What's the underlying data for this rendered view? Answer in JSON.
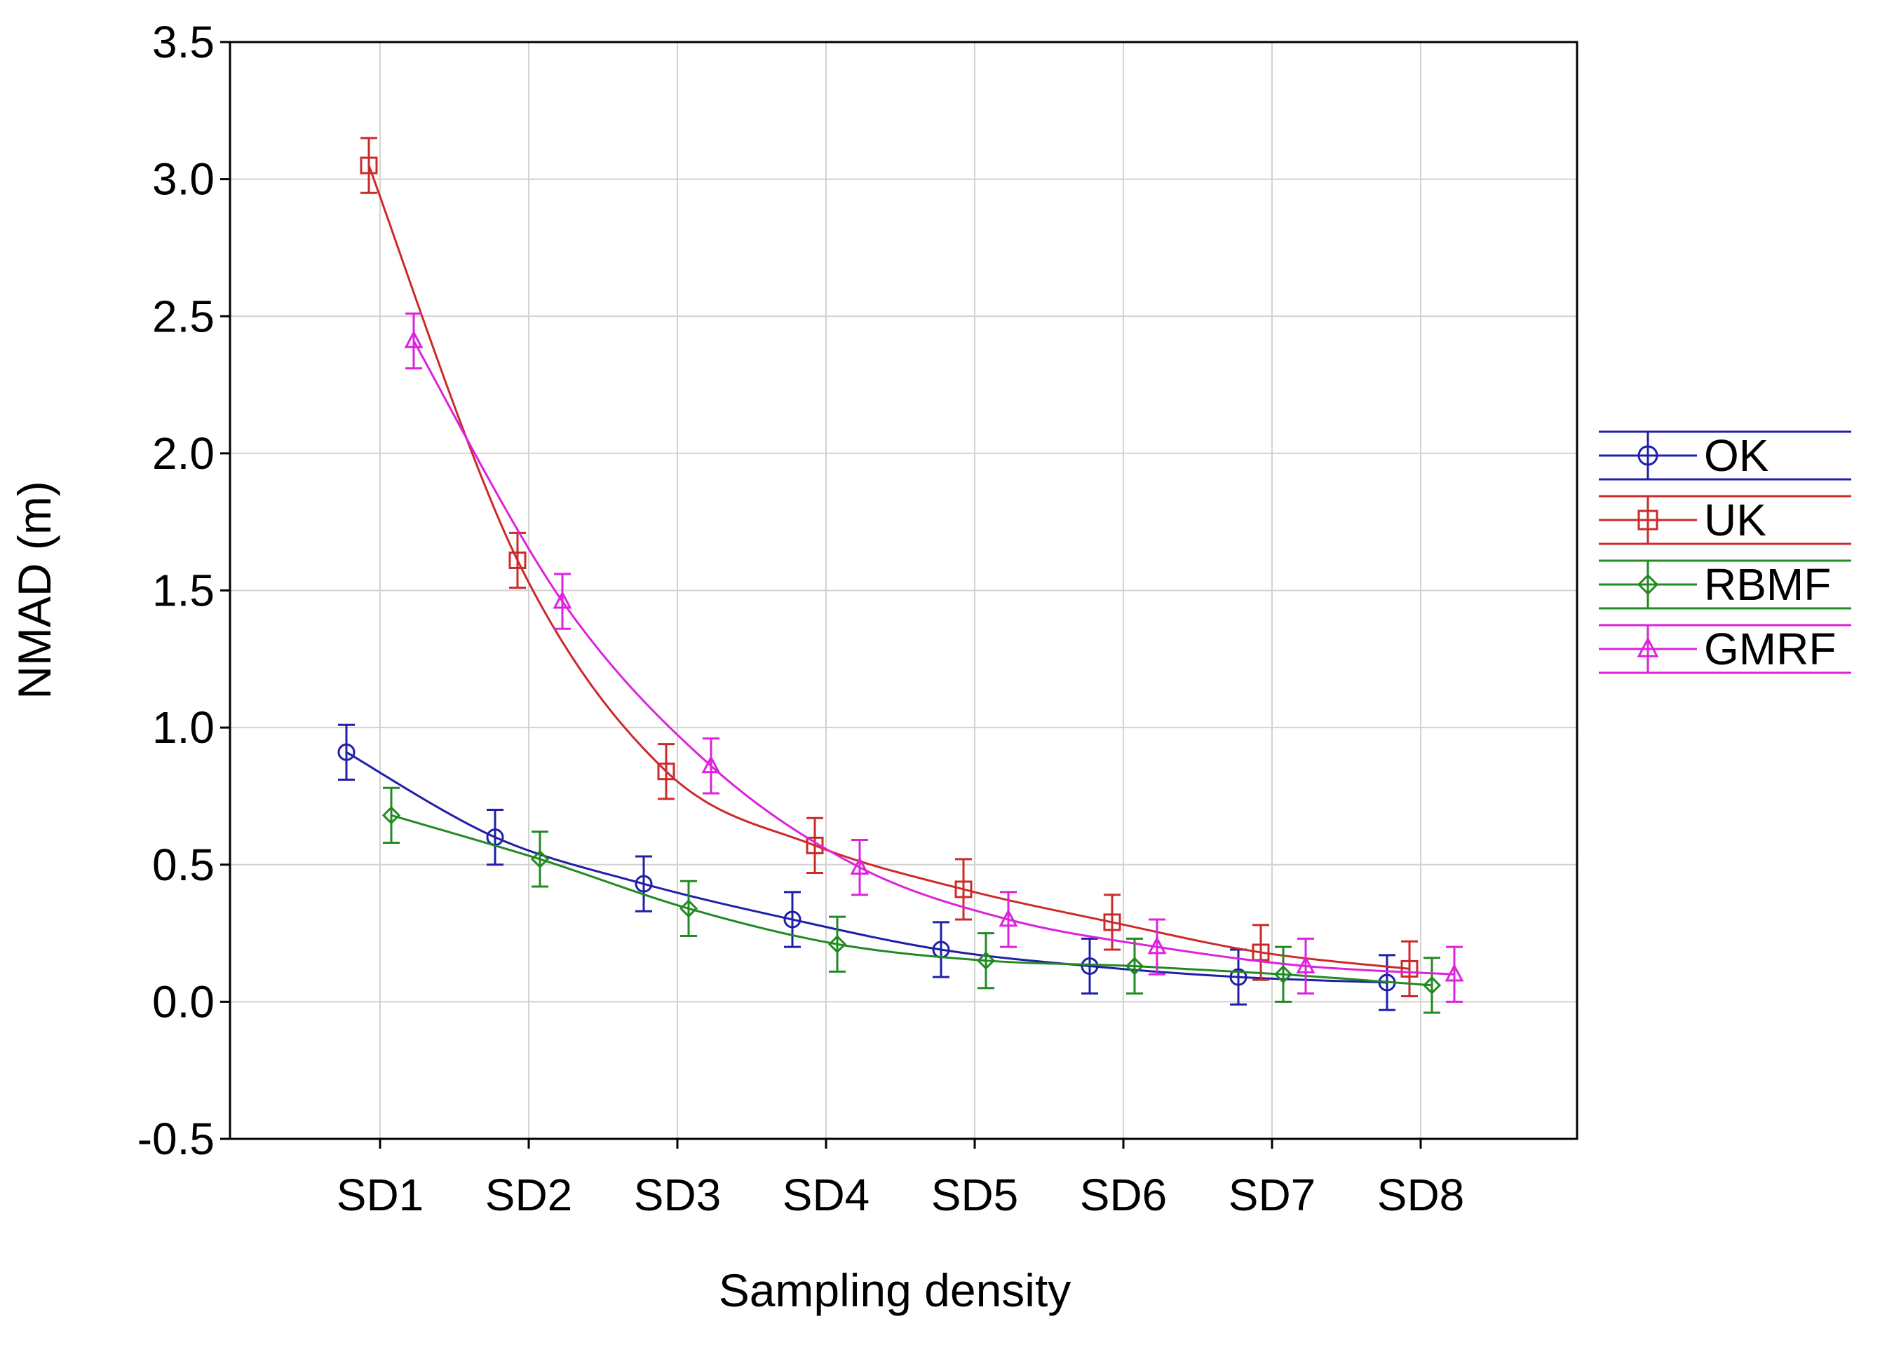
{
  "chart_data": {
    "type": "line",
    "title": "",
    "xlabel": "Sampling density",
    "ylabel": "NMAD (m)",
    "categories": [
      "SD1",
      "SD2",
      "SD3",
      "SD4",
      "SD5",
      "SD6",
      "SD7",
      "SD8"
    ],
    "ylim": [
      -0.5,
      3.5
    ],
    "yticks": [
      "-0.5",
      "0.0",
      "0.5",
      "1.0",
      "1.5",
      "2.0",
      "2.5",
      "3.0",
      "3.5"
    ],
    "grid": true,
    "legend_position": "right",
    "error_bars": true,
    "series": [
      {
        "name": "OK",
        "color": "#1f1fa8",
        "marker": "circle",
        "values": [
          0.91,
          0.6,
          0.43,
          0.3,
          0.19,
          0.13,
          0.09,
          0.07
        ],
        "err": [
          0.1,
          0.1,
          0.1,
          0.1,
          0.1,
          0.1,
          0.1,
          0.1
        ]
      },
      {
        "name": "UK",
        "color": "#cc2a2a",
        "marker": "square",
        "values": [
          3.05,
          1.61,
          0.84,
          0.57,
          0.41,
          0.29,
          0.18,
          0.12
        ],
        "err": [
          0.1,
          0.1,
          0.1,
          0.1,
          0.11,
          0.1,
          0.1,
          0.1
        ]
      },
      {
        "name": "RBMF",
        "color": "#218a21",
        "marker": "diamond",
        "values": [
          0.68,
          0.52,
          0.34,
          0.21,
          0.15,
          0.13,
          0.1,
          0.06
        ],
        "err": [
          0.1,
          0.1,
          0.1,
          0.1,
          0.1,
          0.1,
          0.1,
          0.1
        ]
      },
      {
        "name": "GMRF",
        "color": "#dd22dd",
        "marker": "triangle",
        "values": [
          2.41,
          1.46,
          0.86,
          0.49,
          0.3,
          0.2,
          0.13,
          0.1
        ],
        "err": [
          0.1,
          0.1,
          0.1,
          0.1,
          0.1,
          0.1,
          0.1,
          0.1
        ]
      }
    ]
  }
}
